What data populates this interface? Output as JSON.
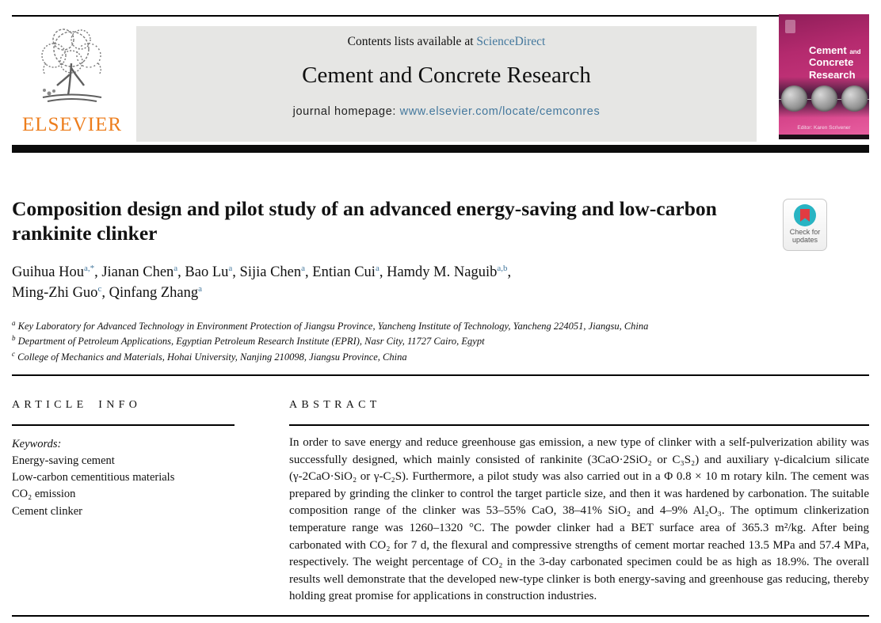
{
  "header": {
    "contents_prefix": "Contents lists available at ",
    "sciencedirect_link": "ScienceDirect",
    "journal_title": "Cement and Concrete Research",
    "homepage_prefix": "journal homepage: ",
    "homepage_link": "www.elsevier.com/locate/cemconres",
    "publisher_wordmark": "ELSEVIER"
  },
  "cover": {
    "title_word1": "Cement",
    "title_and": "and",
    "title_word2": "Concrete",
    "title_word3": "Research",
    "editor_line": "Editor: Karen Scrivener"
  },
  "article": {
    "title": "Composition design and pilot study of an advanced energy-saving and low-carbon rankinite clinker",
    "authors": [
      {
        "name": "Guihua Hou",
        "sup": "a,*"
      },
      {
        "name": "Jianan Chen",
        "sup": "a"
      },
      {
        "name": "Bao Lu",
        "sup": "a"
      },
      {
        "name": "Sijia Chen",
        "sup": "a"
      },
      {
        "name": "Entian Cui",
        "sup": "a"
      },
      {
        "name": "Hamdy M. Naguib",
        "sup": "a,b"
      },
      {
        "name": "Ming-Zhi Guo",
        "sup": "c"
      },
      {
        "name": "Qinfang Zhang",
        "sup": "a"
      }
    ],
    "authors_break_after_index": 5,
    "affiliations": [
      {
        "sup": "a",
        "text": "Key Laboratory for Advanced Technology in Environment Protection of Jiangsu Province, Yancheng Institute of Technology, Yancheng 224051, Jiangsu, China"
      },
      {
        "sup": "b",
        "text": "Department of Petroleum Applications, Egyptian Petroleum Research Institute (EPRI), Nasr City, 11727 Cairo, Egypt"
      },
      {
        "sup": "c",
        "text": "College of Mechanics and Materials, Hohai University, Nanjing 210098, Jiangsu Province, China"
      }
    ],
    "check_badge": {
      "line1": "Check for",
      "line2": "updates"
    }
  },
  "sections": {
    "article_info_heading": "ARTICLE INFO",
    "abstract_heading": "ABSTRACT",
    "keywords_label": "Keywords:",
    "keywords": [
      "Energy-saving cement",
      "Low-carbon cementitious materials",
      "CO₂ emission",
      "Cement clinker"
    ],
    "abstract": "In order to save energy and reduce greenhouse gas emission, a new type of clinker with a self-pulverization ability was successfully designed, which mainly consisted of rankinite (3CaO·2SiO₂ or C₃S₂) and auxiliary γ-dicalcium silicate (γ-2CaO·SiO₂ or γ-C₂S). Furthermore, a pilot study was also carried out in a Φ 0.8 × 10 m rotary kiln. The cement was prepared by grinding the clinker to control the target particle size, and then it was hardened by carbonation. The suitable composition range of the clinker was 53–55% CaO, 38–41% SiO₂ and 4–9% Al₂O₃. The optimum clinkerization temperature range was 1260–1320 °C. The powder clinker had a BET surface area of 365.3 m²/kg. After being carbonated with CO₂ for 7 d, the flexural and compressive strengths of cement mortar reached 13.5 MPa and 57.4 MPa, respectively. The weight percentage of CO₂ in the 3-day carbonated specimen could be as high as 18.9%. The overall results well demonstrate that the developed new-type clinker is both energy-saving and greenhouse gas reducing, thereby holding great promise for applications in construction industries."
  },
  "colors": {
    "link_blue": "#44789d",
    "elsevier_orange": "#ed7d1c",
    "cover_pink": "#c23378",
    "badge_teal": "#29b4c3",
    "badge_red": "#e23b41",
    "band_gray": "#e6e6e4"
  }
}
